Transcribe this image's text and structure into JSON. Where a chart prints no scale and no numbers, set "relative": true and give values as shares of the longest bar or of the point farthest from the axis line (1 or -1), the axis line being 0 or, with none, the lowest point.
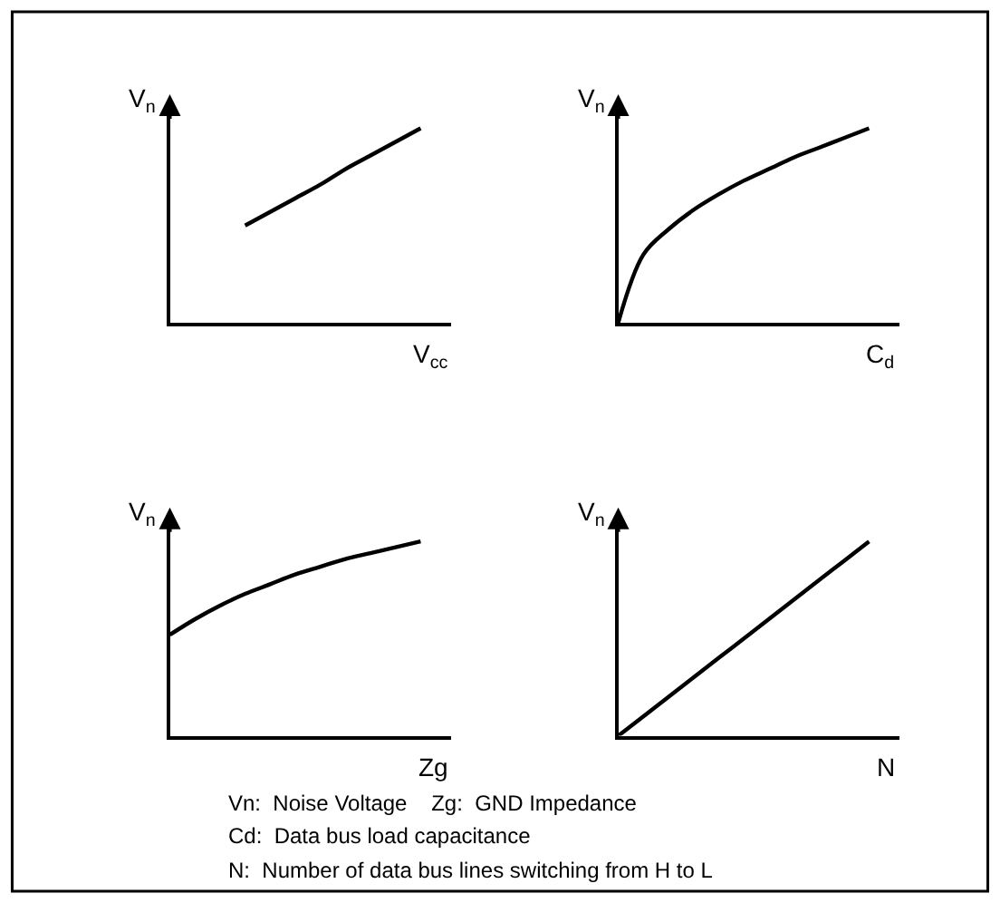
{
  "chart_data": [
    {
      "type": "line",
      "relative": true,
      "xlabel": "V$_{cc}$",
      "ylabel": "V$_{n}$",
      "color": "#000000",
      "categories": [
        null,
        null,
        null,
        null,
        null,
        null,
        null,
        null,
        null,
        null,
        null
      ],
      "values": [
        null,
        null,
        null,
        0.5,
        0.57,
        0.64,
        0.71,
        0.79,
        0.86,
        0.93,
        1.0
      ]
    },
    {
      "type": "line",
      "relative": true,
      "xlabel": "C$_{d}$",
      "ylabel": "V$_{n}$",
      "color": "#000000",
      "categories": [
        null,
        null,
        null,
        null,
        null,
        null,
        null,
        null,
        null,
        null,
        null
      ],
      "values": [
        0,
        0.35,
        0.48,
        0.58,
        0.66,
        0.73,
        0.79,
        0.85,
        0.9,
        0.95,
        1.0
      ]
    },
    {
      "type": "line",
      "relative": true,
      "xlabel": "Zg",
      "ylabel": "V$_{n}$",
      "color": "#000000",
      "categories": [
        null,
        null,
        null,
        null,
        null,
        null,
        null,
        null,
        null,
        null,
        null
      ],
      "values": [
        0.52,
        0.6,
        0.67,
        0.73,
        0.78,
        0.83,
        0.87,
        0.91,
        0.94,
        0.97,
        1.0
      ]
    },
    {
      "type": "line",
      "relative": true,
      "xlabel": "N",
      "ylabel": "V$_{n}$",
      "color": "#000000",
      "categories": [
        null,
        null,
        null,
        null,
        null,
        null,
        null,
        null,
        null,
        null,
        null
      ],
      "values": [
        0,
        0.1,
        0.2,
        0.3,
        0.4,
        0.5,
        0.6,
        0.7,
        0.8,
        0.9,
        1.0
      ],
      "annotations": [
        "Vn:  Noise Voltage    Zg:  GND Impedance",
        "Cd:  Data bus load capacitance",
        "N:  Number of data bus lines switching from H to L"
      ]
    }
  ]
}
